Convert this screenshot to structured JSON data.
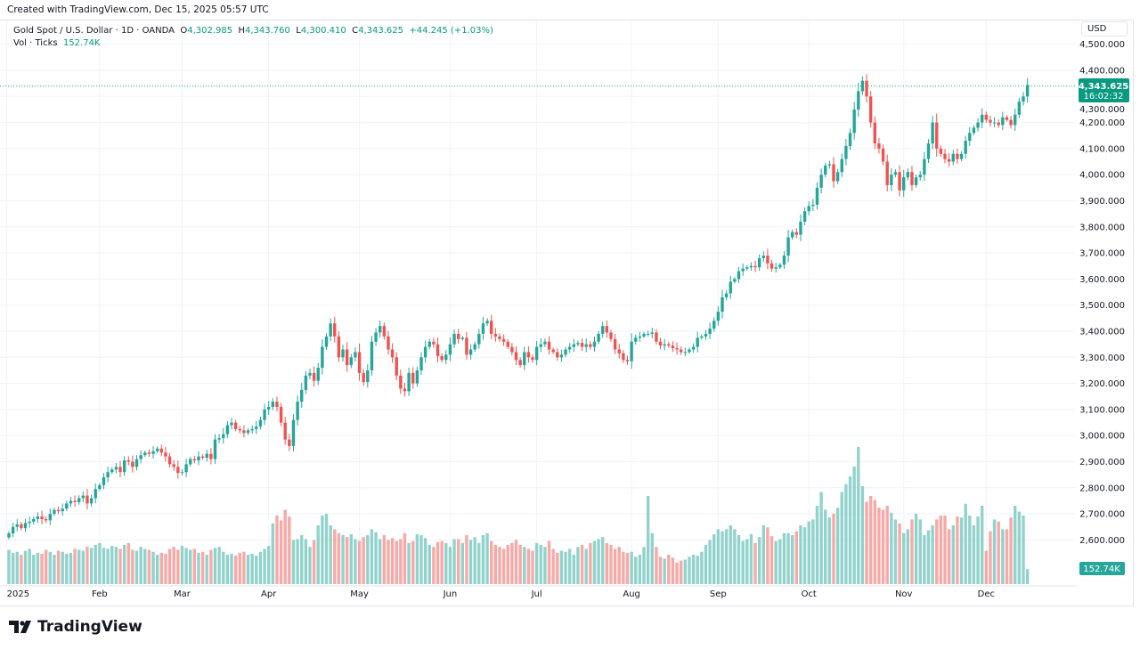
{
  "header": {
    "created": "Created with TradingView.com, Dec 15, 2025 05:57 UTC"
  },
  "legend": {
    "symbol": "Gold Spot / U.S. Dollar · 1D · OANDA",
    "o_label": "O",
    "open": "4,302.985",
    "h_label": "H",
    "high": "4,343.760",
    "l_label": "L",
    "low": "4,300.410",
    "c_label": "C",
    "close": "4,343.625",
    "change": "+44.245 (+1.03%)",
    "vol_label": "Vol · Ticks",
    "vol_value": "152.74K"
  },
  "currency": "USD",
  "last_price": {
    "price": "4,343.625",
    "countdown": "16:02:32"
  },
  "last_volume": "152.74K",
  "brand": "TradingView",
  "colors": {
    "up": "#26a69a",
    "down": "#ef5350",
    "up_vol": "#92d2cc",
    "down_vol": "#f7a9a7",
    "grid": "#f0f3fa"
  },
  "chart_data": {
    "type": "candlestick",
    "ylim": [
      2500,
      4500
    ],
    "y_ticks": [
      "4,500.000",
      "4,400.000",
      "4,300.000",
      "4,200.000",
      "4,100.000",
      "4,000.000",
      "3,900.000",
      "3,800.000",
      "3,700.000",
      "3,600.000",
      "3,500.000",
      "3,400.000",
      "3,300.000",
      "3,200.000",
      "3,100.000",
      "3,000.000",
      "2,900.000",
      "2,800.000",
      "2,700.000",
      "2,600.000"
    ],
    "x_ticks": [
      {
        "label": "2025",
        "bar": -0.5
      },
      {
        "label": "Feb",
        "bar": 22
      },
      {
        "label": "Mar",
        "bar": 42
      },
      {
        "label": "Apr",
        "bar": 63
      },
      {
        "label": "May",
        "bar": 85
      },
      {
        "label": "Jun",
        "bar": 107
      },
      {
        "label": "Jul",
        "bar": 128
      },
      {
        "label": "Aug",
        "bar": 151
      },
      {
        "label": "Sep",
        "bar": 172
      },
      {
        "label": "Oct",
        "bar": 194
      },
      {
        "label": "Nov",
        "bar": 217
      },
      {
        "label": "Dec",
        "bar": 237
      }
    ],
    "close": [
      2625,
      2650,
      2660,
      2645,
      2665,
      2670,
      2680,
      2690,
      2680,
      2675,
      2700,
      2715,
      2710,
      2720,
      2740,
      2750,
      2745,
      2760,
      2770,
      2740,
      2760,
      2795,
      2810,
      2840,
      2860,
      2870,
      2880,
      2860,
      2905,
      2900,
      2880,
      2910,
      2925,
      2935,
      2930,
      2940,
      2950,
      2935,
      2920,
      2890,
      2880,
      2857,
      2860,
      2890,
      2910,
      2905,
      2920,
      2915,
      2930,
      2910,
      2985,
      2990,
      3005,
      3040,
      3050,
      3025,
      3020,
      3010,
      3020,
      3025,
      3035,
      3060,
      3100,
      3110,
      3130,
      3110,
      3050,
      2985,
      2960,
      3060,
      3130,
      3175,
      3230,
      3240,
      3210,
      3260,
      3340,
      3380,
      3430,
      3380,
      3300,
      3330,
      3270,
      3300,
      3320,
      3240,
      3205,
      3250,
      3360,
      3395,
      3420,
      3380,
      3330,
      3300,
      3230,
      3180,
      3170,
      3240,
      3200,
      3250,
      3300,
      3340,
      3360,
      3350,
      3305,
      3290,
      3310,
      3350,
      3390,
      3370,
      3375,
      3310,
      3330,
      3350,
      3390,
      3430,
      3440,
      3390,
      3380,
      3370,
      3360,
      3340,
      3320,
      3290,
      3270,
      3320,
      3300,
      3290,
      3340,
      3350,
      3360,
      3330,
      3320,
      3300,
      3310,
      3330,
      3340,
      3350,
      3355,
      3340,
      3350,
      3340,
      3360,
      3390,
      3420,
      3395,
      3370,
      3330,
      3315,
      3290,
      3285,
      3360,
      3375,
      3380,
      3390,
      3390,
      3395,
      3360,
      3345,
      3350,
      3345,
      3335,
      3330,
      3320,
      3320,
      3330,
      3340,
      3375,
      3380,
      3390,
      3410,
      3440,
      3475,
      3530,
      3545,
      3590,
      3600,
      3630,
      3640,
      3645,
      3650,
      3645,
      3680,
      3690,
      3660,
      3640,
      3645,
      3655,
      3690,
      3760,
      3780,
      3770,
      3820,
      3860,
      3880,
      3885,
      3950,
      4000,
      4035,
      4040,
      3975,
      4010,
      4060,
      4110,
      4160,
      4250,
      4320,
      4360,
      4300,
      4200,
      4120,
      4100,
      4050,
      3960,
      4000,
      4010,
      3940,
      3990,
      4010,
      3960,
      3990,
      4000,
      4060,
      4120,
      4200,
      4100,
      4080,
      4060,
      4050,
      4080,
      4060,
      4080,
      4130,
      4160,
      4180,
      4200,
      4230,
      4210,
      4200,
      4200,
      4190,
      4220,
      4210,
      4190,
      4230,
      4280,
      4300,
      4343.625
    ],
    "volume_k": [
      350,
      320,
      330,
      300,
      340,
      360,
      300,
      320,
      310,
      350,
      330,
      300,
      340,
      330,
      310,
      320,
      360,
      350,
      340,
      380,
      370,
      400,
      420,
      370,
      360,
      390,
      380,
      360,
      400,
      420,
      350,
      340,
      380,
      360,
      350,
      330,
      300,
      320,
      310,
      360,
      380,
      350,
      390,
      370,
      350,
      360,
      320,
      330,
      300,
      350,
      370,
      380,
      330,
      300,
      310,
      290,
      320,
      330,
      300,
      310,
      290,
      330,
      360,
      390,
      620,
      700,
      650,
      760,
      690,
      450,
      460,
      500,
      460,
      380,
      450,
      600,
      700,
      720,
      600,
      560,
      520,
      500,
      480,
      510,
      460,
      440,
      480,
      500,
      560,
      530,
      460,
      500,
      450,
      470,
      440,
      460,
      520,
      420,
      440,
      510,
      500,
      470,
      400,
      380,
      430,
      440,
      420,
      380,
      460,
      460,
      420,
      500,
      450,
      480,
      420,
      500,
      520,
      440,
      400,
      380,
      360,
      400,
      420,
      450,
      400,
      380,
      360,
      340,
      420,
      400,
      380,
      440,
      360,
      320,
      340,
      330,
      360,
      300,
      380,
      400,
      360,
      420,
      440,
      460,
      480,
      420,
      400,
      360,
      380,
      330,
      320,
      330,
      280,
      300,
      380,
      900,
      520,
      380,
      280,
      260,
      300,
      270,
      220,
      240,
      250,
      280,
      300,
      290,
      330,
      400,
      450,
      510,
      560,
      540,
      560,
      600,
      560,
      500,
      440,
      460,
      510,
      420,
      480,
      600,
      580,
      490,
      440,
      460,
      520,
      520,
      500,
      540,
      600,
      580,
      640,
      660,
      800,
      940,
      760,
      680,
      720,
      780,
      940,
      1020,
      1100,
      1200,
      1400,
      1000,
      840,
      900,
      860,
      780,
      760,
      800,
      730,
      660,
      620,
      520,
      560,
      660,
      720,
      660,
      500,
      550,
      600,
      660,
      700,
      700,
      560,
      600,
      690,
      680,
      820,
      700,
      600,
      690,
      800,
      340,
      540,
      660,
      640,
      560,
      560,
      680,
      800,
      740,
      700,
      152.74
    ]
  }
}
